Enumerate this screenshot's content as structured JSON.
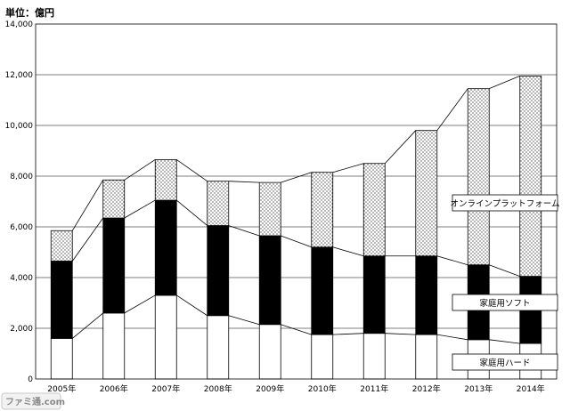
{
  "chart_data": {
    "type": "bar",
    "stacked": true,
    "unit_label": "単位：億円",
    "categories": [
      "2005年",
      "2006年",
      "2007年",
      "2008年",
      "2009年",
      "2010年",
      "2011年",
      "2012年",
      "2013年",
      "2014年"
    ],
    "ylim": [
      0,
      14000
    ],
    "yticks": [
      "0",
      "2,000",
      "4,000",
      "6,000",
      "8,000",
      "10,000",
      "12,000",
      "14,000"
    ],
    "grid": true,
    "series": [
      {
        "name": "家庭用ハード",
        "fill": "white",
        "values": [
          1600,
          2600,
          3300,
          2500,
          2150,
          1750,
          1800,
          1750,
          1550,
          1400
        ]
      },
      {
        "name": "家庭用ソフト",
        "fill": "black",
        "values": [
          3050,
          3750,
          3750,
          3550,
          3500,
          3450,
          3050,
          3100,
          2950,
          2650
        ]
      },
      {
        "name": "オンラインプラットフォーム",
        "fill": "dotted",
        "values": [
          1200,
          1500,
          1600,
          1750,
          2100,
          2950,
          3650,
          4950,
          6950,
          7900
        ]
      }
    ],
    "legend_placement": "right"
  },
  "watermark": "ファミ通.com"
}
